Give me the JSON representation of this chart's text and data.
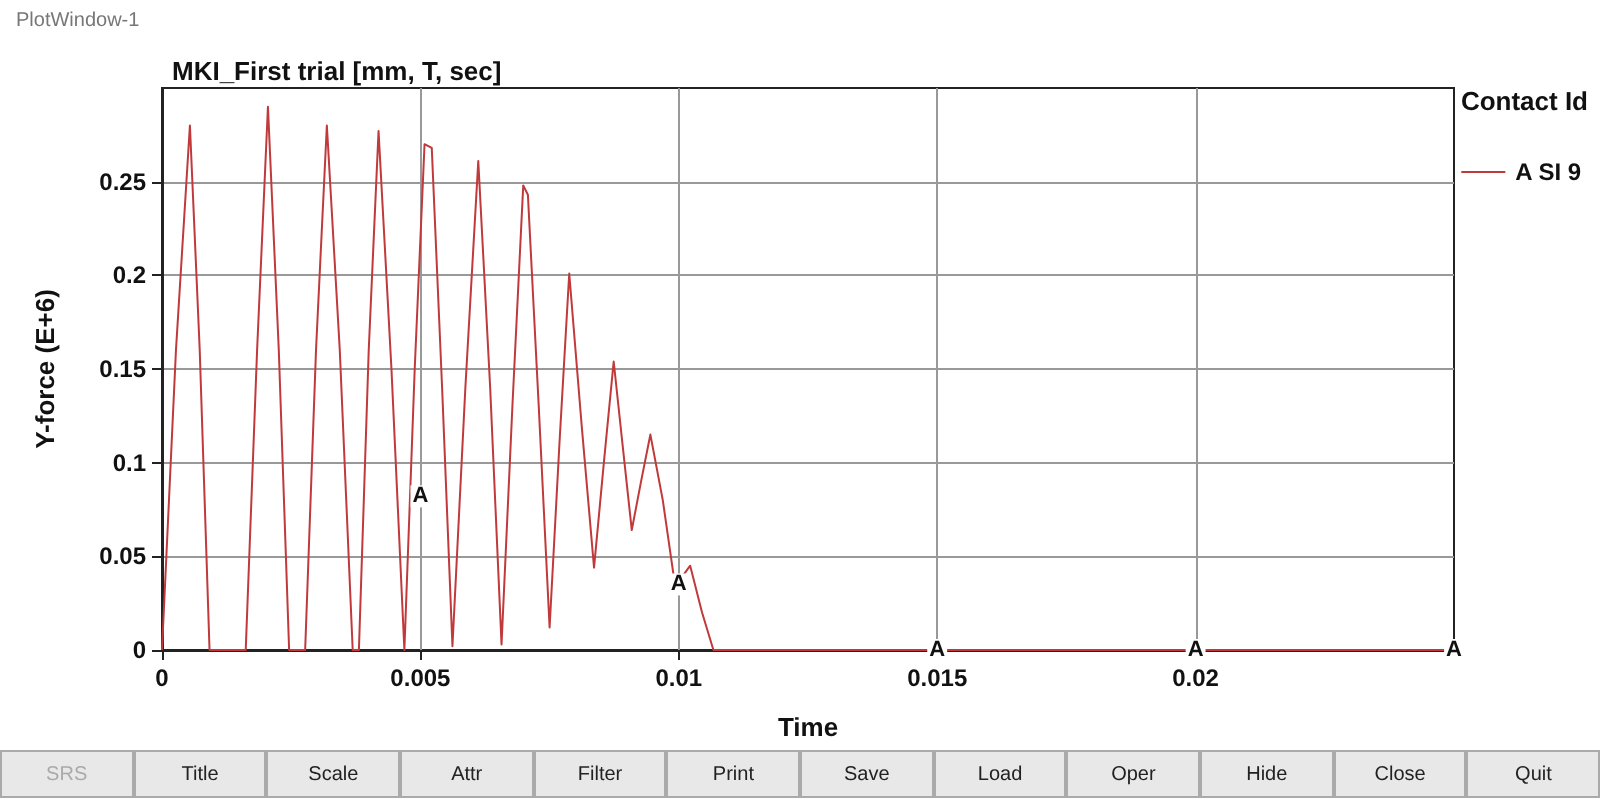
{
  "chart_data": {
    "type": "line",
    "title": "MKI_First trial [mm, T, sec]",
    "xlabel": "Time",
    "ylabel": "Y-force (E+6)",
    "legend_title": "Contact Id",
    "legend": "top right",
    "grid": true,
    "marker": "none",
    "line_style": "solid",
    "xlim": [
      0,
      0.025
    ],
    "xticks": [
      0,
      0.005,
      0.01,
      0.015,
      0.02
    ],
    "ylim": [
      0,
      0.3
    ],
    "yticks": [
      0,
      0.05,
      0.1,
      0.15,
      0.2,
      0.25
    ],
    "series": [
      {
        "name": "A SI 9",
        "color": "#c0393b",
        "x": [
          0,
          0.00027,
          0.00054,
          0.00073,
          0.00092,
          0.00162,
          0.00184,
          0.00205,
          0.00226,
          0.00246,
          0.00277,
          0.00298,
          0.00319,
          0.00344,
          0.00369,
          0.00381,
          0.004,
          0.00419,
          0.00444,
          0.00469,
          0.00489,
          0.00508,
          0.00522,
          0.00542,
          0.00562,
          0.00587,
          0.00612,
          0.00635,
          0.00657,
          0.00678,
          0.00699,
          0.00708,
          0.00729,
          0.0075,
          0.00769,
          0.00788,
          0.00812,
          0.00836,
          0.00855,
          0.00874,
          0.00891,
          0.00909,
          0.00927,
          0.00945,
          0.00969,
          0.00993,
          0.01022,
          0.01045,
          0.01067,
          0.025
        ],
        "values": [
          0,
          0.16,
          0.28,
          0.16,
          0,
          0,
          0.16,
          0.29,
          0.16,
          0,
          0,
          0.16,
          0.28,
          0.16,
          0,
          0,
          0.16,
          0.277,
          0.15,
          0,
          0.15,
          0.27,
          0.268,
          0.14,
          0.002,
          0.14,
          0.261,
          0.14,
          0.003,
          0.13,
          0.248,
          0.243,
          0.13,
          0.012,
          0.11,
          0.201,
          0.12,
          0.044,
          0.1,
          0.154,
          0.11,
          0.064,
          0.09,
          0.115,
          0.08,
          0.034,
          0.045,
          0.02,
          0,
          0
        ]
      }
    ],
    "annotations": [
      {
        "text": "A",
        "x": 0.005,
        "y": 0.082
      },
      {
        "text": "A",
        "x": 0.01,
        "y": 0.035
      },
      {
        "text": "A",
        "x": 0.015,
        "y": 0
      },
      {
        "text": "A",
        "x": 0.02,
        "y": 0
      },
      {
        "text": "A",
        "x": 0.025,
        "y": 0
      },
      "PlotWindow-1",
      "SRS",
      "Title",
      "Scale",
      "Attr",
      "Filter",
      "Print",
      "Save",
      "Load",
      "Oper",
      "Hide",
      "Close",
      "Quit"
    ]
  }
}
